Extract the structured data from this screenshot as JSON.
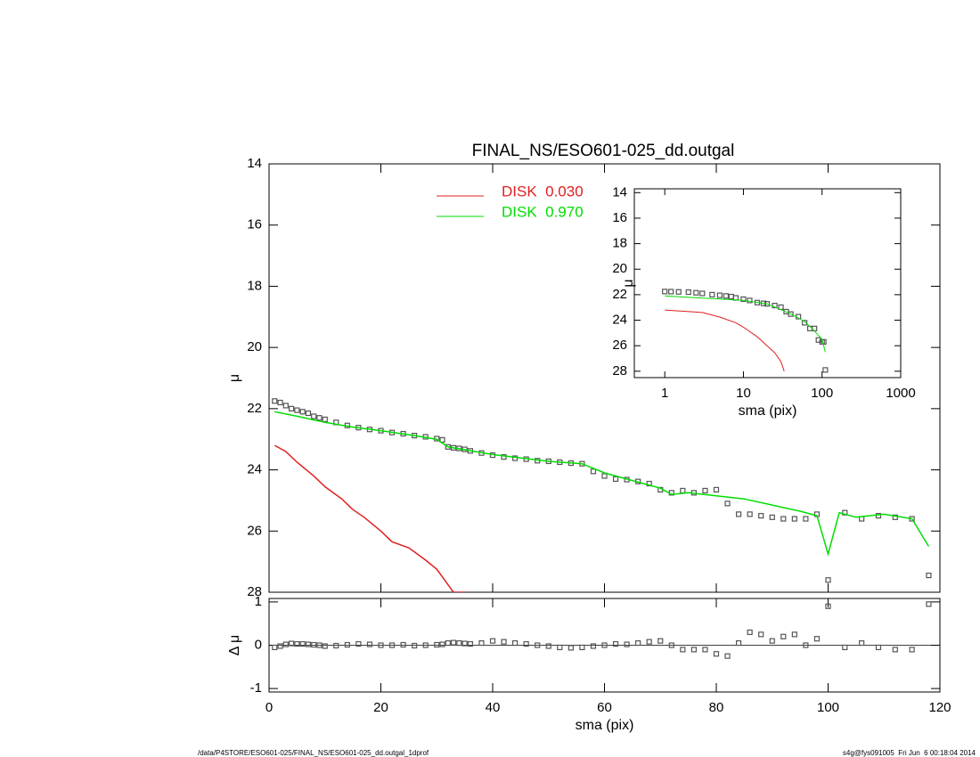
{
  "chart_data": [
    {
      "type": "line",
      "title": "FINAL_NS/ESO601-025_dd.outgal",
      "ylabel": "μ",
      "xlim": [
        0,
        120
      ],
      "ylim": [
        14,
        28
      ],
      "yticks": [
        14,
        16,
        18,
        20,
        22,
        24,
        26,
        28
      ],
      "y_inverted": true,
      "series": [
        {
          "style": "points",
          "color": "#555555",
          "x": [
            1,
            2,
            3,
            4,
            5,
            6,
            7,
            8,
            9,
            10,
            12,
            14,
            16,
            18,
            20,
            22,
            24,
            26,
            28,
            30,
            31,
            32,
            33,
            34,
            35,
            36,
            38,
            40,
            42,
            44,
            46,
            48,
            50,
            52,
            54,
            56,
            58,
            60,
            62,
            64,
            66,
            68,
            70,
            72,
            74,
            76,
            78,
            80,
            82,
            84,
            86,
            88,
            90,
            92,
            94,
            96,
            98,
            100,
            103,
            106,
            109,
            112,
            115,
            118
          ],
          "values": [
            21.75,
            21.8,
            21.9,
            22.0,
            22.05,
            22.1,
            22.15,
            22.25,
            22.3,
            22.35,
            22.45,
            22.55,
            22.62,
            22.68,
            22.72,
            22.78,
            22.82,
            22.88,
            22.92,
            22.98,
            23.02,
            23.25,
            23.28,
            23.3,
            23.33,
            23.38,
            23.45,
            23.52,
            23.58,
            23.62,
            23.65,
            23.7,
            23.72,
            23.75,
            23.78,
            23.8,
            24.05,
            24.2,
            24.3,
            24.32,
            24.38,
            24.45,
            24.65,
            24.75,
            24.68,
            24.75,
            24.68,
            24.65,
            25.1,
            25.45,
            25.45,
            25.5,
            25.55,
            25.6,
            25.6,
            25.6,
            25.45,
            27.6,
            25.4,
            25.6,
            25.5,
            25.55,
            25.6,
            27.45
          ]
        },
        {
          "style": "line",
          "name": "DISK  0.030",
          "color": "#e02020",
          "x": [
            1,
            3,
            5,
            8,
            10,
            13,
            15,
            17,
            20,
            22,
            25,
            28,
            30,
            32,
            33,
            35
          ],
          "values": [
            23.2,
            23.4,
            23.75,
            24.2,
            24.55,
            24.95,
            25.3,
            25.55,
            26.0,
            26.35,
            26.55,
            26.95,
            27.25,
            27.75,
            28.0,
            28.0
          ]
        },
        {
          "style": "line",
          "name": "DISK  0.970",
          "color": "#00dd00",
          "x": [
            1,
            5,
            10,
            15,
            20,
            25,
            30,
            32,
            40,
            50,
            56,
            60,
            65,
            70,
            72,
            75,
            80,
            85,
            90,
            95,
            98,
            100,
            102,
            105,
            110,
            115,
            118
          ],
          "values": [
            22.1,
            22.25,
            22.45,
            22.6,
            22.72,
            22.85,
            23.0,
            23.25,
            23.5,
            23.72,
            23.8,
            24.1,
            24.35,
            24.6,
            24.8,
            24.75,
            24.85,
            24.95,
            25.15,
            25.35,
            25.5,
            26.75,
            25.4,
            25.55,
            25.45,
            25.6,
            26.5
          ]
        }
      ]
    },
    {
      "type": "scatter",
      "xlabel": "sma (pix)",
      "ylabel": "Δ μ",
      "xlim": [
        0,
        120
      ],
      "xticks": [
        0,
        20,
        40,
        60,
        80,
        100,
        120
      ],
      "ylim": [
        -1.08,
        1.08
      ],
      "yticks": [
        -1,
        0,
        1
      ],
      "series": [
        {
          "style": "points",
          "color": "#555555",
          "x": [
            1,
            2,
            3,
            4,
            5,
            6,
            7,
            8,
            9,
            10,
            12,
            14,
            16,
            18,
            20,
            22,
            24,
            26,
            28,
            30,
            31,
            32,
            33,
            34,
            35,
            36,
            38,
            40,
            42,
            44,
            46,
            48,
            50,
            52,
            54,
            56,
            58,
            60,
            62,
            64,
            66,
            68,
            70,
            72,
            74,
            76,
            78,
            80,
            82,
            84,
            86,
            88,
            90,
            92,
            94,
            96,
            98,
            100,
            103,
            106,
            109,
            112,
            115,
            118
          ],
          "values": [
            -0.05,
            -0.02,
            0.02,
            0.04,
            0.03,
            0.03,
            0.02,
            0.01,
            0.0,
            -0.02,
            -0.01,
            0.01,
            0.03,
            0.02,
            0.0,
            0.0,
            0.01,
            -0.01,
            0.0,
            0.01,
            0.02,
            0.05,
            0.06,
            0.05,
            0.04,
            0.03,
            0.05,
            0.1,
            0.08,
            0.05,
            0.03,
            0.0,
            -0.02,
            -0.05,
            -0.06,
            -0.05,
            -0.02,
            0.0,
            0.03,
            0.02,
            0.05,
            0.08,
            0.1,
            0.0,
            -0.1,
            -0.1,
            -0.1,
            -0.2,
            -0.25,
            0.05,
            0.3,
            0.25,
            0.1,
            0.2,
            0.25,
            0.0,
            0.15,
            0.9,
            -0.05,
            0.05,
            -0.05,
            -0.1,
            -0.1,
            0.95
          ]
        }
      ]
    },
    {
      "type": "line",
      "xlabel": "sma (pix)",
      "ylabel": "μ",
      "log_x": true,
      "xlim": [
        0.41,
        1000
      ],
      "xticks": [
        1,
        10,
        100,
        1000
      ],
      "ylim": [
        13.7,
        28.5
      ],
      "yticks": [
        14,
        16,
        18,
        20,
        22,
        24,
        26,
        28
      ],
      "y_inverted": true,
      "series": [
        {
          "style": "points",
          "color": "#555555",
          "x": [
            1,
            1.2,
            1.5,
            2,
            2.5,
            3,
            4,
            5,
            6,
            7,
            8,
            10,
            12,
            15,
            18,
            20,
            25,
            30,
            35,
            40,
            50,
            60,
            70,
            80,
            90,
            100,
            105,
            110
          ],
          "values": [
            21.75,
            21.76,
            21.78,
            21.8,
            21.85,
            21.9,
            22.0,
            22.05,
            22.1,
            22.15,
            22.25,
            22.35,
            22.45,
            22.62,
            22.68,
            22.72,
            22.85,
            22.98,
            23.33,
            23.52,
            23.72,
            24.2,
            24.65,
            24.65,
            25.55,
            25.7,
            25.7,
            27.9
          ]
        },
        {
          "style": "line",
          "color": "#e02020",
          "x": [
            1,
            3,
            5,
            8,
            10,
            15,
            20,
            25,
            30,
            33
          ],
          "values": [
            23.2,
            23.4,
            23.75,
            24.2,
            24.55,
            25.3,
            26.0,
            26.55,
            27.25,
            28.0
          ]
        },
        {
          "style": "line",
          "color": "#00dd00",
          "x": [
            1,
            10,
            20,
            40,
            60,
            80,
            100,
            110
          ],
          "values": [
            22.1,
            22.45,
            22.72,
            23.5,
            24.1,
            24.85,
            25.5,
            26.5
          ]
        }
      ]
    }
  ],
  "footer": {
    "left": "/data/P4STORE/ESO601-025/FINAL_NS/ESO601-025_dd.outgal_1dprof",
    "right": "s4g@fys091005  Fri Jun  6 00:18:04 2014"
  }
}
